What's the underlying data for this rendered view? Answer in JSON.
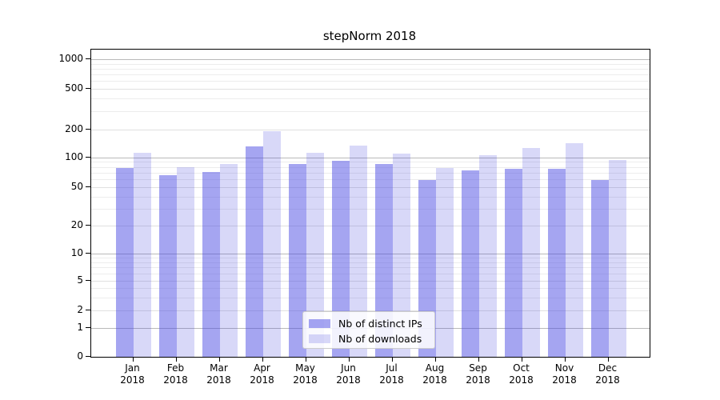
{
  "title": "stepNorm 2018",
  "chart_data": {
    "type": "bar",
    "title": "stepNorm 2018",
    "year": "2018",
    "categories": [
      "Jan",
      "Feb",
      "Mar",
      "Apr",
      "May",
      "Jun",
      "Jul",
      "Aug",
      "Sep",
      "Oct",
      "Nov",
      "Dec"
    ],
    "series": [
      {
        "name": "Nb of distinct IPs",
        "color_solid": "#a5a5f1",
        "color_fill": "#4b4be380",
        "values": [
          78,
          66,
          71,
          131,
          86,
          93,
          86,
          59,
          74,
          76,
          77,
          59
        ]
      },
      {
        "name": "Nb of downloads",
        "color_solid": "#d8d8f8",
        "color_fill": "#3c3cdc33",
        "values": [
          112,
          80,
          85,
          190,
          111,
          134,
          110,
          78,
          105,
          127,
          142,
          94
        ]
      }
    ],
    "yticks": [
      0,
      1,
      2,
      5,
      10,
      20,
      50,
      100,
      200,
      500,
      1000
    ],
    "ylim": [
      0,
      1000
    ],
    "yscale": "asinh-log",
    "grid": true,
    "legend_position": "inside-bottom-center",
    "grid_colors": {
      "major": "#b9b9b9",
      "labeled": "#e0e0e0",
      "minor": "#ececec"
    }
  }
}
